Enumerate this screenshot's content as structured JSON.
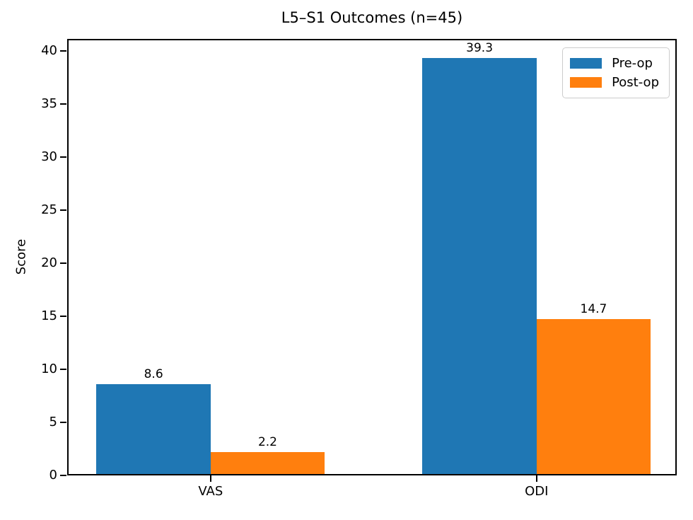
{
  "chart_data": {
    "type": "bar",
    "title": "L5–S1 Outcomes (n=45)",
    "xlabel": "",
    "ylabel": "Score",
    "categories": [
      "VAS",
      "ODI"
    ],
    "series": [
      {
        "name": "Pre-op",
        "color": "#1f77b4",
        "values": [
          8.6,
          39.3
        ]
      },
      {
        "name": "Post-op",
        "color": "#ff7f0e",
        "values": [
          2.2,
          14.7
        ]
      }
    ],
    "bar_value_labels": [
      "8.6",
      "2.2",
      "39.3",
      "14.7"
    ],
    "yticks": [
      0,
      5,
      10,
      15,
      20,
      25,
      30,
      35,
      40
    ],
    "ylim": [
      0,
      41.1
    ],
    "grid": false,
    "legend_position": "upper right",
    "value_label_decimals": 1
  }
}
